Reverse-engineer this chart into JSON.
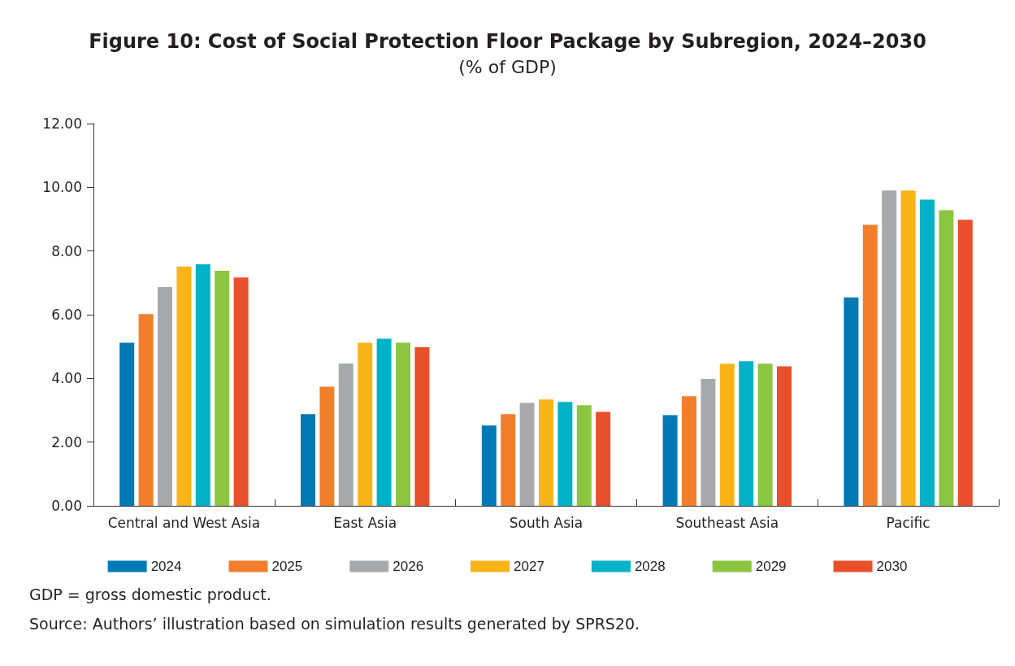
{
  "chart_data": {
    "type": "bar",
    "title": "Figure 10: Cost of Social Protection Floor Package by Subregion, 2024–2030",
    "subtitle": "(% of GDP)",
    "categories": [
      "Central and West Asia",
      "East Asia",
      "South Asia",
      "Southeast Asia",
      "Pacific"
    ],
    "series": [
      {
        "name": "2024",
        "color": "#0079b5",
        "values": [
          5.12,
          2.88,
          2.52,
          2.85,
          6.54
        ]
      },
      {
        "name": "2025",
        "color": "#f27e2b",
        "values": [
          6.02,
          3.74,
          2.88,
          3.44,
          8.82
        ]
      },
      {
        "name": "2026",
        "color": "#a7a8ab",
        "values": [
          6.87,
          4.47,
          3.23,
          3.98,
          9.9
        ]
      },
      {
        "name": "2027",
        "color": "#f9b418",
        "values": [
          7.51,
          5.12,
          3.34,
          4.46,
          9.9
        ]
      },
      {
        "name": "2028",
        "color": "#00b2c7",
        "values": [
          7.58,
          5.25,
          3.26,
          4.54,
          9.61
        ]
      },
      {
        "name": "2029",
        "color": "#8cc53f",
        "values": [
          7.38,
          5.12,
          3.16,
          4.46,
          9.28
        ]
      },
      {
        "name": "2030",
        "color": "#e8502b",
        "values": [
          7.17,
          4.98,
          2.95,
          4.38,
          8.98
        ]
      }
    ],
    "ylim": [
      0,
      12
    ],
    "yticks": [
      {
        "value": 0,
        "label": "0.00"
      },
      {
        "value": 2,
        "label": "2.00"
      },
      {
        "value": 4,
        "label": "4.00"
      },
      {
        "value": 6,
        "label": "6.00"
      },
      {
        "value": 8,
        "label": "8.00"
      },
      {
        "value": 10,
        "label": "10.00"
      },
      {
        "value": 12,
        "label": "12.00"
      }
    ],
    "grid": false,
    "legend": "bottom",
    "annotations": [
      "GDP = gross domestic product.",
      "Source: Authors’ illustration based on simulation results generated by SPRS20."
    ]
  }
}
